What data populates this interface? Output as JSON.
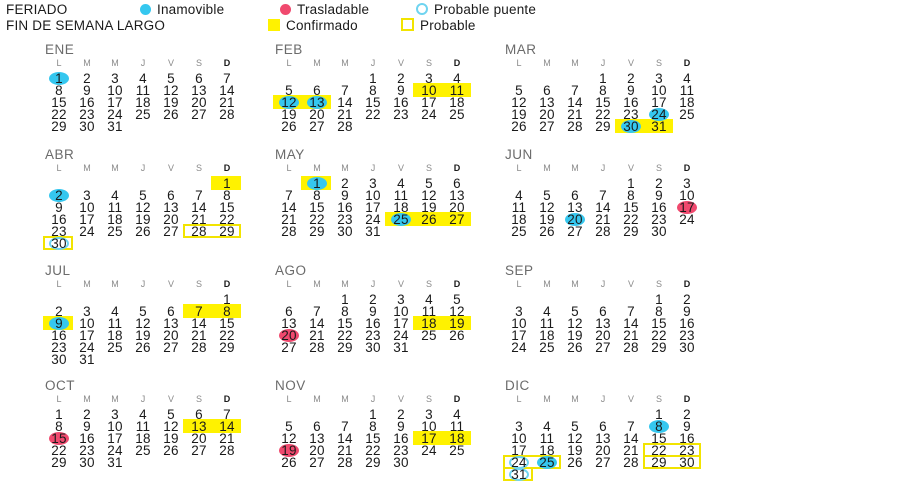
{
  "legend": {
    "feriado": "FERIADO",
    "inamovible": "Inamovible",
    "trasladable": "Trasladable",
    "probable_puente": "Probable puente",
    "fin_de_semana_largo": "FIN DE SEMANA LARGO",
    "confirmado": "Confirmado",
    "probable": "Probable"
  },
  "colors": {
    "inamovible": "#35c7ef",
    "trasladable": "#f0496e",
    "probable_puente": "#6fd4f0",
    "confirmado": "#fff200",
    "probable": "#f2e400"
  },
  "weekday_headers": [
    "L",
    "M",
    "M",
    "J",
    "V",
    "S",
    "D"
  ],
  "months": [
    {
      "name": "ENE",
      "days": 31,
      "start_weekday": 0,
      "inamovible": [
        1
      ],
      "trasladable": [],
      "probable_puente": [],
      "confirmado": [],
      "probable": []
    },
    {
      "name": "FEB",
      "days": 28,
      "start_weekday": 3,
      "inamovible": [
        12,
        13
      ],
      "trasladable": [],
      "probable_puente": [],
      "confirmado": [
        [
          10,
          11
        ],
        [
          12,
          13
        ]
      ],
      "probable": []
    },
    {
      "name": "MAR",
      "days": 31,
      "start_weekday": 3,
      "inamovible": [
        24,
        30
      ],
      "trasladable": [],
      "probable_puente": [],
      "confirmado": [
        [
          30,
          31
        ]
      ],
      "probable": []
    },
    {
      "name": "ABR",
      "days": 30,
      "start_weekday": 6,
      "inamovible": [
        2
      ],
      "trasladable": [],
      "probable_puente": [
        30
      ],
      "confirmado": [
        [
          1,
          1
        ]
      ],
      "probable": [
        [
          28,
          29
        ],
        [
          30,
          30
        ]
      ]
    },
    {
      "name": "MAY",
      "days": 31,
      "start_weekday": 1,
      "inamovible": [
        1,
        25
      ],
      "trasladable": [],
      "probable_puente": [],
      "confirmado": [
        [
          1,
          1
        ],
        [
          25,
          27
        ]
      ],
      "probable": []
    },
    {
      "name": "JUN",
      "days": 30,
      "start_weekday": 4,
      "inamovible": [
        20
      ],
      "trasladable": [
        17
      ],
      "probable_puente": [],
      "confirmado": [],
      "probable": []
    },
    {
      "name": "JUL",
      "days": 31,
      "start_weekday": 6,
      "inamovible": [
        9
      ],
      "trasladable": [],
      "probable_puente": [],
      "confirmado": [
        [
          7,
          8
        ],
        [
          9,
          9
        ]
      ],
      "probable": []
    },
    {
      "name": "AGO",
      "days": 31,
      "start_weekday": 2,
      "inamovible": [],
      "trasladable": [
        20
      ],
      "probable_puente": [],
      "confirmado": [
        [
          18,
          19
        ]
      ],
      "probable": []
    },
    {
      "name": "SEP",
      "days": 30,
      "start_weekday": 5,
      "inamovible": [],
      "trasladable": [],
      "probable_puente": [],
      "confirmado": [],
      "probable": []
    },
    {
      "name": "OCT",
      "days": 31,
      "start_weekday": 0,
      "inamovible": [],
      "trasladable": [
        15
      ],
      "probable_puente": [],
      "confirmado": [
        [
          13,
          14
        ]
      ],
      "probable": []
    },
    {
      "name": "NOV",
      "days": 30,
      "start_weekday": 3,
      "inamovible": [],
      "trasladable": [
        19
      ],
      "probable_puente": [],
      "confirmado": [
        [
          17,
          18
        ]
      ],
      "probable": []
    },
    {
      "name": "DIC",
      "days": 31,
      "start_weekday": 5,
      "inamovible": [
        8,
        25
      ],
      "trasladable": [],
      "probable_puente": [
        24,
        31
      ],
      "confirmado": [],
      "probable": [
        [
          24,
          25
        ],
        [
          22,
          23
        ],
        [
          29,
          30
        ],
        [
          31,
          31
        ]
      ]
    }
  ]
}
